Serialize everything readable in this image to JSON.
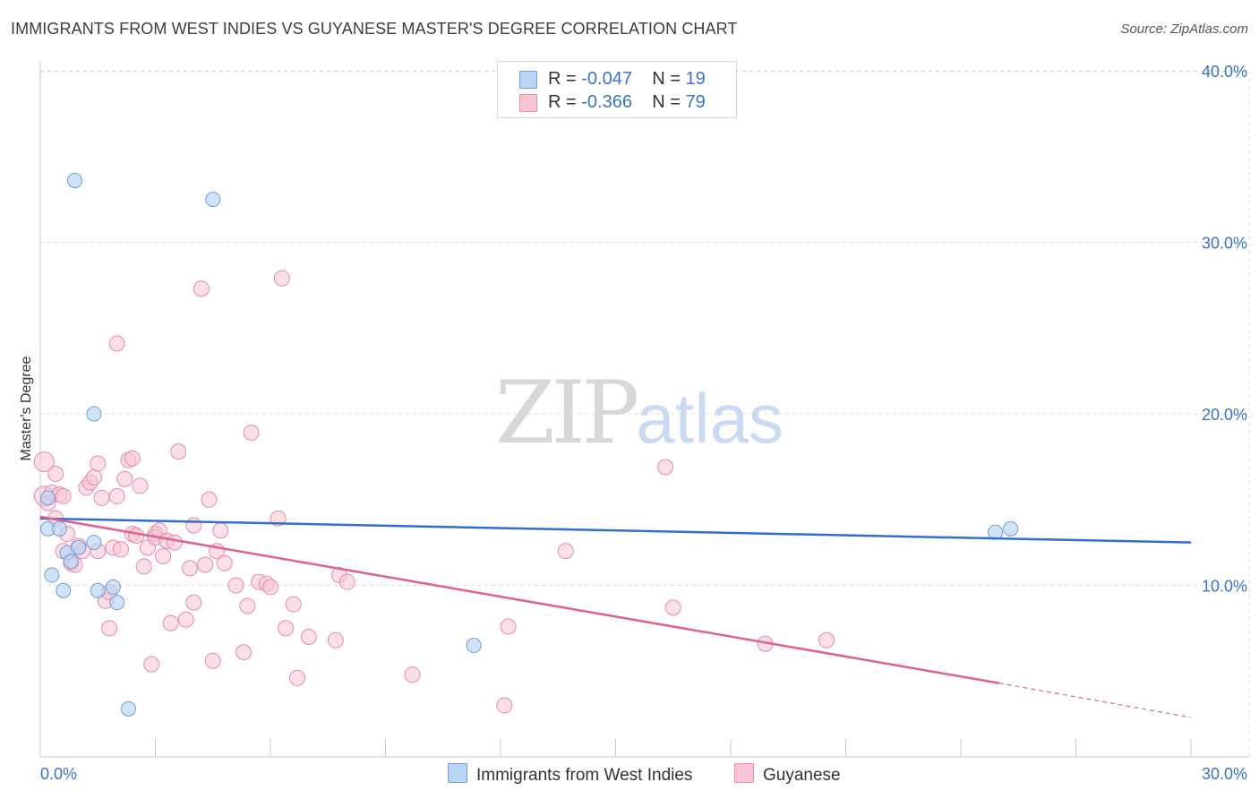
{
  "header": {
    "title": "IMMIGRANTS FROM WEST INDIES VS GUYANESE MASTER'S DEGREE CORRELATION CHART",
    "source": "Source: ZipAtlas.com"
  },
  "watermark": {
    "part1": "ZIP",
    "part2": "atlas"
  },
  "legend": {
    "rows": [
      {
        "r_label": "R =",
        "r_value": "-0.047",
        "n_label": "N =",
        "n_value": "19"
      },
      {
        "r_label": "R =",
        "r_value": "-0.366",
        "n_label": "N =",
        "n_value": "79"
      }
    ]
  },
  "colors": {
    "blue_fill": "#b9d4f5",
    "blue_stroke": "#6c9ee0",
    "blue_line": "#2f6fcf",
    "pink_fill": "#f8c4d4",
    "pink_stroke": "#e88aa8",
    "pink_line": "#e0608e",
    "axis_text": "#3a72c8",
    "grid": "#dcdcdc"
  },
  "chart_data": {
    "type": "scatter",
    "title": "IMMIGRANTS FROM WEST INDIES VS GUYANESE MASTER'S DEGREE CORRELATION CHART",
    "xlabel": "",
    "ylabel": "Master's Degree",
    "xlim": [
      0,
      30
    ],
    "ylim": [
      0,
      40
    ],
    "x_tick_labels": [
      "0.0%",
      "30.0%"
    ],
    "y_ticks": [
      10,
      20,
      30,
      40
    ],
    "y_tick_labels": [
      "10.0%",
      "20.0%",
      "30.0%",
      "40.0%"
    ],
    "grid": true,
    "series": [
      {
        "name": "Immigrants from West Indies",
        "color": "#6c9ee0",
        "R": -0.047,
        "N": 19,
        "trend": {
          "x0": 0.0,
          "y0": 13.9,
          "x1": 30.0,
          "y1": 12.5
        },
        "points": [
          [
            0.2,
            15.1
          ],
          [
            0.2,
            13.3
          ],
          [
            0.5,
            13.3
          ],
          [
            0.3,
            10.6
          ],
          [
            0.6,
            9.7
          ],
          [
            0.7,
            11.9
          ],
          [
            0.8,
            11.4
          ],
          [
            1.0,
            12.2
          ],
          [
            0.9,
            33.6
          ],
          [
            1.4,
            20.0
          ],
          [
            1.4,
            12.5
          ],
          [
            1.5,
            9.7
          ],
          [
            1.9,
            9.9
          ],
          [
            2.0,
            9.0
          ],
          [
            2.3,
            2.8
          ],
          [
            4.5,
            32.5
          ],
          [
            11.3,
            6.5
          ],
          [
            24.9,
            13.1
          ],
          [
            25.3,
            13.3
          ]
        ]
      },
      {
        "name": "Guyanese",
        "color": "#e88aa8",
        "R": -0.366,
        "N": 79,
        "trend": {
          "x0": 0.0,
          "y0": 14.0,
          "x1": 25.0,
          "y1": 4.3,
          "dash_x1": 30.0,
          "dash_y1": 2.3
        },
        "points": [
          [
            0.1,
            17.2
          ],
          [
            0.1,
            15.2
          ],
          [
            0.2,
            14.8
          ],
          [
            0.3,
            15.4
          ],
          [
            0.4,
            16.5
          ],
          [
            0.5,
            15.3
          ],
          [
            0.6,
            15.2
          ],
          [
            0.6,
            12.0
          ],
          [
            0.7,
            13.0
          ],
          [
            0.8,
            11.3
          ],
          [
            0.9,
            11.2
          ],
          [
            1.0,
            12.3
          ],
          [
            1.1,
            12.0
          ],
          [
            1.2,
            15.7
          ],
          [
            1.3,
            16.0
          ],
          [
            1.4,
            16.3
          ],
          [
            1.5,
            17.1
          ],
          [
            1.5,
            12.0
          ],
          [
            1.6,
            15.1
          ],
          [
            1.7,
            9.1
          ],
          [
            1.8,
            9.6
          ],
          [
            1.8,
            7.5
          ],
          [
            1.9,
            12.2
          ],
          [
            2.0,
            15.2
          ],
          [
            2.0,
            24.1
          ],
          [
            2.1,
            12.1
          ],
          [
            2.2,
            16.2
          ],
          [
            2.3,
            17.3
          ],
          [
            2.4,
            17.4
          ],
          [
            2.4,
            13.0
          ],
          [
            2.5,
            12.9
          ],
          [
            2.6,
            15.8
          ],
          [
            2.7,
            11.1
          ],
          [
            2.8,
            12.2
          ],
          [
            2.9,
            5.4
          ],
          [
            3.0,
            13.0
          ],
          [
            3.0,
            12.8
          ],
          [
            3.1,
            13.2
          ],
          [
            3.2,
            11.7
          ],
          [
            3.3,
            12.6
          ],
          [
            3.4,
            7.8
          ],
          [
            3.5,
            12.5
          ],
          [
            3.6,
            17.8
          ],
          [
            3.8,
            8.0
          ],
          [
            3.9,
            11.0
          ],
          [
            4.0,
            13.5
          ],
          [
            4.0,
            9.0
          ],
          [
            4.2,
            27.3
          ],
          [
            4.3,
            11.2
          ],
          [
            4.4,
            15.0
          ],
          [
            4.5,
            5.6
          ],
          [
            4.6,
            12.0
          ],
          [
            4.7,
            13.2
          ],
          [
            4.8,
            11.3
          ],
          [
            5.1,
            10.0
          ],
          [
            5.3,
            6.1
          ],
          [
            5.4,
            8.8
          ],
          [
            5.5,
            18.9
          ],
          [
            5.7,
            10.2
          ],
          [
            5.9,
            10.1
          ],
          [
            6.0,
            9.9
          ],
          [
            6.2,
            13.9
          ],
          [
            6.3,
            27.9
          ],
          [
            6.4,
            7.5
          ],
          [
            6.6,
            8.9
          ],
          [
            6.7,
            4.6
          ],
          [
            7.0,
            7.0
          ],
          [
            7.7,
            6.8
          ],
          [
            7.8,
            10.6
          ],
          [
            8.0,
            10.2
          ],
          [
            9.7,
            4.8
          ],
          [
            12.1,
            3.0
          ],
          [
            12.2,
            7.6
          ],
          [
            13.7,
            12.0
          ],
          [
            16.3,
            16.9
          ],
          [
            16.5,
            8.7
          ],
          [
            18.9,
            6.6
          ],
          [
            20.5,
            6.8
          ],
          [
            0.4,
            13.9
          ]
        ]
      }
    ]
  },
  "bottom_legend": {
    "items": [
      {
        "label": "Immigrants from West Indies"
      },
      {
        "label": "Guyanese"
      }
    ]
  }
}
